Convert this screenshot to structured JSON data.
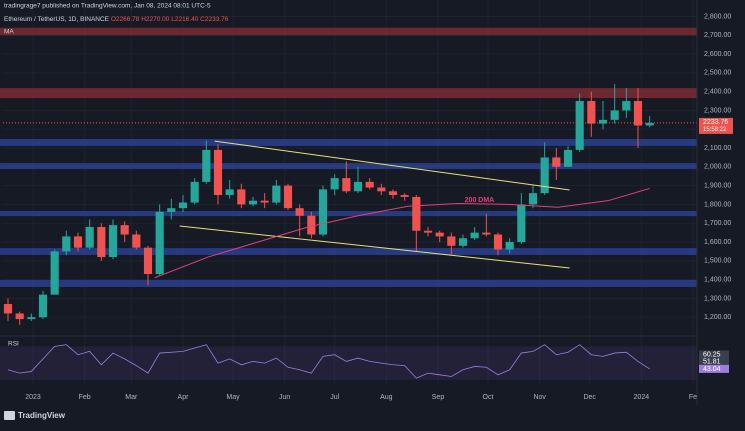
{
  "header": {
    "published": "tradingrage7 published on TradingView.com, Jan 08, 2024 08:01 UTC-5",
    "symbol": "Ethereum / TetherUS, 1D, BINANCE",
    "o": "O2266.78",
    "h": "H2270.00",
    "l": "L2216.40",
    "c": "C2233.76",
    "indicator": "MA",
    "logo": "TradingView"
  },
  "chart_data": {
    "type": "candlestick",
    "x": [
      0,
      7,
      14,
      21,
      28,
      35,
      42,
      49,
      56,
      63,
      70,
      77,
      84,
      91,
      98,
      105,
      112,
      119,
      126,
      133,
      140,
      147,
      154,
      161,
      168,
      175,
      182,
      189,
      196,
      203,
      210,
      217,
      224,
      231,
      238,
      245,
      252,
      259,
      266,
      273,
      280,
      287,
      294,
      301,
      308,
      315,
      322,
      329,
      336,
      343,
      350,
      357,
      364,
      371,
      378,
      385
    ],
    "open": [
      1270,
      1220,
      1190,
      1200,
      1320,
      1550,
      1630,
      1570,
      1680,
      1520,
      1690,
      1640,
      1570,
      1430,
      1760,
      1780,
      1810,
      1920,
      2090,
      1850,
      1880,
      1800,
      1820,
      1810,
      1900,
      1780,
      1740,
      1640,
      1880,
      1940,
      1870,
      1920,
      1890,
      1870,
      1850,
      1840,
      1660,
      1650,
      1630,
      1580,
      1620,
      1650,
      1640,
      1560,
      1600,
      1800,
      1860,
      2050,
      2000,
      2090,
      2350,
      2230,
      2250,
      2300,
      2350,
      2220
    ],
    "high": [
      1300,
      1230,
      1220,
      1340,
      1560,
      1660,
      1650,
      1720,
      1700,
      1720,
      1710,
      1660,
      1580,
      1800,
      1830,
      1850,
      1940,
      2140,
      2120,
      1930,
      1910,
      1840,
      1860,
      1930,
      1910,
      1800,
      1760,
      1900,
      1960,
      2030,
      2000,
      1940,
      1910,
      1880,
      1860,
      1850,
      1680,
      1660,
      1650,
      1640,
      1680,
      1750,
      1650,
      1620,
      1860,
      1900,
      2130,
      2100,
      2110,
      2390,
      2400,
      2350,
      2440,
      2420,
      2420,
      2270
    ],
    "low": [
      1180,
      1160,
      1180,
      1190,
      1320,
      1530,
      1550,
      1560,
      1500,
      1510,
      1600,
      1560,
      1370,
      1420,
      1720,
      1760,
      1800,
      1910,
      1800,
      1830,
      1780,
      1790,
      1780,
      1800,
      1770,
      1630,
      1620,
      1630,
      1850,
      1860,
      1860,
      1880,
      1850,
      1830,
      1820,
      1550,
      1630,
      1600,
      1530,
      1570,
      1610,
      1630,
      1530,
      1540,
      1590,
      1780,
      1850,
      1930,
      2000,
      2080,
      2160,
      2200,
      2230,
      2260,
      2100,
      2210
    ],
    "close": [
      1220,
      1190,
      1200,
      1320,
      1550,
      1630,
      1570,
      1680,
      1520,
      1690,
      1640,
      1570,
      1430,
      1760,
      1780,
      1810,
      1920,
      2090,
      1850,
      1880,
      1800,
      1820,
      1810,
      1900,
      1780,
      1740,
      1640,
      1880,
      1940,
      1870,
      1920,
      1890,
      1870,
      1850,
      1840,
      1660,
      1650,
      1630,
      1580,
      1620,
      1650,
      1640,
      1560,
      1600,
      1800,
      1860,
      2050,
      2000,
      2090,
      2350,
      2230,
      2250,
      2300,
      2350,
      2220,
      2233.76
    ],
    "up_color": "#26a69a",
    "down_color": "#ef5350",
    "xlim": [
      -3,
      413.4
    ],
    "xticks": [
      {
        "value": 15,
        "label": "2023"
      },
      {
        "value": 46,
        "label": "Feb"
      },
      {
        "value": 74,
        "label": "Mar"
      },
      {
        "value": 105,
        "label": "Apr"
      },
      {
        "value": 135,
        "label": "May"
      },
      {
        "value": 166,
        "label": "Jun"
      },
      {
        "value": 196,
        "label": "Jul"
      },
      {
        "value": 227,
        "label": "Aug"
      },
      {
        "value": 258,
        "label": "Sep"
      },
      {
        "value": 288,
        "label": "Oct"
      },
      {
        "value": 319,
        "label": "Nov"
      },
      {
        "value": 349,
        "label": "Dec"
      },
      {
        "value": 380,
        "label": "2024"
      },
      {
        "value": 411,
        "label": "Fe"
      }
    ],
    "ylim": [
      1116,
      2845
    ],
    "yticks": [
      {
        "value": 1200,
        "label": "1,200.00"
      },
      {
        "value": 1300,
        "label": "1,300.00"
      },
      {
        "value": 1400,
        "label": "1,400.00"
      },
      {
        "value": 1500,
        "label": "1,500.00"
      },
      {
        "value": 1600,
        "label": "1,600.00"
      },
      {
        "value": 1700,
        "label": "1,700.00"
      },
      {
        "value": 1800,
        "label": "1,800.00"
      },
      {
        "value": 1900,
        "label": "1,900.00"
      },
      {
        "value": 2000,
        "label": "2,000.00"
      },
      {
        "value": 2100,
        "label": "2,100.00"
      },
      {
        "value": 2200,
        "label": "2,200.00"
      },
      {
        "value": 2300,
        "label": "2,300.00"
      },
      {
        "value": 2400,
        "label": "2,400.00"
      },
      {
        "value": 2500,
        "label": "2,500.00"
      },
      {
        "value": 2600,
        "label": "2,600.00"
      },
      {
        "value": 2700,
        "label": "2,700.00"
      },
      {
        "value": 2800,
        "label": "2,800.00"
      }
    ],
    "grid": true,
    "last_price": 2233.76,
    "countdown": "15:58:22",
    "zones": [
      {
        "low": 2700,
        "high": 2740,
        "color": "#7a2c33"
      },
      {
        "low": 2366,
        "high": 2419,
        "color": "#7a2c33"
      },
      {
        "low": 2111,
        "high": 2148,
        "color": "#2a3f8f"
      },
      {
        "low": 1988,
        "high": 2020,
        "color": "#2a3f8f"
      },
      {
        "low": 1738,
        "high": 1765,
        "color": "#2a3f8f"
      },
      {
        "low": 1531,
        "high": 1568,
        "color": "#2a3f8f"
      },
      {
        "low": 1361,
        "high": 1398,
        "color": "#2a3f8f"
      }
    ],
    "lines": [
      {
        "x1": 124,
        "y1": 2137,
        "x2": 337,
        "y2": 1877,
        "color": "#e8e07a"
      },
      {
        "x1": 103,
        "y1": 1685,
        "x2": 337,
        "y2": 1462,
        "color": "#e8e07a"
      }
    ],
    "ma": {
      "name": "200 DMA",
      "color": "#e0407a",
      "label_x": 274,
      "label_y": 1823,
      "x": [
        88,
        120,
        150,
        180,
        210,
        240,
        270,
        300,
        330,
        360,
        385
      ],
      "values": [
        1410,
        1520,
        1600,
        1680,
        1740,
        1790,
        1805,
        1800,
        1785,
        1820,
        1885
      ]
    },
    "rsi": {
      "name": "RSI",
      "color": "#9c7ee0",
      "ylim": [
        25,
        80
      ],
      "band": [
        30,
        70
      ],
      "values": [
        42,
        38,
        40,
        55,
        70,
        72,
        60,
        64,
        48,
        62,
        55,
        47,
        38,
        62,
        63,
        64,
        68,
        72,
        50,
        55,
        48,
        52,
        50,
        56,
        45,
        42,
        38,
        58,
        60,
        52,
        56,
        52,
        50,
        48,
        47,
        32,
        38,
        36,
        34,
        42,
        46,
        45,
        36,
        42,
        62,
        64,
        72,
        60,
        63,
        72,
        60,
        58,
        62,
        63,
        52,
        43.04
      ],
      "labels": [
        60.25,
        51.81,
        43.04
      ]
    }
  }
}
